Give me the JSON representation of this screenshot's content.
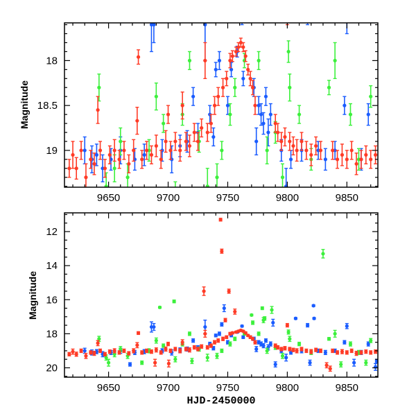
{
  "chart_data": {
    "type": "scatter",
    "title": "",
    "xlabel": "HJD-2450000",
    "ylabel": "Magnitude",
    "xlim": [
      9613,
      9876
    ],
    "x_ticks": [
      9650,
      9700,
      9750,
      9800,
      9850
    ],
    "x_minor_step": 10,
    "colors": {
      "blue": "#1a5cff",
      "green": "#3cf03c",
      "red": "#ff3b26"
    },
    "panels": [
      {
        "name": "top",
        "ylim": [
          17.58,
          19.41
        ],
        "inverted": true,
        "y_ticks": [
          18,
          18.5,
          19
        ],
        "y_tick_labels": [
          "18",
          "18.5",
          "19"
        ],
        "y_minor_step": 0.1,
        "show_xlabel": false
      },
      {
        "name": "bottom",
        "ylim": [
          10.9,
          20.55
        ],
        "inverted": true,
        "y_ticks": [
          12,
          14,
          16,
          18,
          20
        ],
        "y_tick_labels": [
          "12",
          "14",
          "16",
          "18",
          "20"
        ],
        "y_minor_step": 0.5,
        "show_xlabel": true
      }
    ],
    "series": [
      {
        "name": "blue",
        "color": "#1a5cff",
        "points": [
          [
            9630,
            19.0,
            0.15
          ],
          [
            9636,
            19.1,
            0.15
          ],
          [
            9640,
            19.05,
            0.12
          ],
          [
            9645,
            19.2,
            0.15
          ],
          [
            9652,
            19.1,
            0.12
          ],
          [
            9660,
            19.0,
            0.15
          ],
          [
            9668,
            19.8,
            0.1
          ],
          [
            9672,
            19.1,
            0.12
          ],
          [
            9680,
            19.05,
            0.12
          ],
          [
            9686,
            17.6,
            0.3
          ],
          [
            9688,
            17.6,
            0.2
          ],
          [
            9695,
            19.0,
            0.12
          ],
          [
            9703,
            19.1,
            0.15
          ],
          [
            9710,
            18.95,
            0.12
          ],
          [
            9716,
            18.9,
            0.12
          ],
          [
            9721,
            18.4,
            0.1
          ],
          [
            9725,
            18.8,
            0.1
          ],
          [
            9731,
            17.6,
            0.4
          ],
          [
            9735,
            18.6,
            0.1
          ],
          [
            9738,
            18.85,
            0.1
          ],
          [
            9740,
            18.1,
            0.08
          ],
          [
            9743,
            18.0,
            0.1
          ],
          [
            9745,
            17.45,
            0.1
          ],
          [
            9747,
            16.5,
            0.2
          ],
          [
            9750,
            18.5,
            0.1
          ],
          [
            9753,
            18.1,
            0.08
          ],
          [
            9758,
            17.9,
            0.06
          ],
          [
            9762,
            17.55,
            0.05
          ],
          [
            9763,
            18.2,
            0.08
          ],
          [
            9772,
            18.3,
            0.1
          ],
          [
            9774,
            18.9,
            0.15
          ],
          [
            9776,
            18.5,
            0.1
          ],
          [
            9778,
            18.6,
            0.12
          ],
          [
            9780,
            18.7,
            0.12
          ],
          [
            9782,
            18.4,
            0.1
          ],
          [
            9784,
            18.8,
            0.15
          ],
          [
            9786,
            18.6,
            0.12
          ],
          [
            9788,
            17.35,
            0.2
          ],
          [
            9790,
            19.8,
            0.15
          ],
          [
            9795,
            19.0,
            0.12
          ],
          [
            9799,
            19.4,
            0.2
          ],
          [
            9803,
            19.1,
            0.1
          ],
          [
            9807,
            17.1,
            0.05
          ],
          [
            9812,
            19.0,
            0.12
          ],
          [
            9817,
            17.5,
            0.1
          ],
          [
            9819,
            19.7,
            0.15
          ],
          [
            9822,
            16.35,
            0.05
          ],
          [
            9822.5,
            17.1,
            0.05
          ],
          [
            9826,
            19.0,
            0.1
          ],
          [
            9832,
            19.1,
            0.12
          ],
          [
            9840,
            19.0,
            0.1
          ],
          [
            9848,
            18.5,
            0.1
          ],
          [
            9850,
            17.55,
            0.15
          ],
          [
            9856,
            19.7,
            0.2
          ],
          [
            9862,
            19.1,
            0.12
          ],
          [
            9868,
            18.6,
            0.12
          ],
          [
            9874,
            19.95,
            0.2
          ],
          [
            9875,
            19.6,
            0.1
          ]
        ]
      },
      {
        "name": "green",
        "color": "#3cf03c",
        "points": [
          [
            9642,
            18.3,
            0.15
          ],
          [
            9648,
            19.4,
            0.15
          ],
          [
            9650,
            19.7,
            0.2
          ],
          [
            9655,
            19.2,
            0.15
          ],
          [
            9660,
            18.9,
            0.15
          ],
          [
            9666,
            19.3,
            0.15
          ],
          [
            9678,
            19.7,
            0.1
          ],
          [
            9684,
            19.0,
            0.12
          ],
          [
            9690,
            18.4,
            0.15
          ],
          [
            9693,
            16.45,
            0.05
          ],
          [
            9696,
            18.7,
            0.1
          ],
          [
            9705,
            16.1,
            0.08
          ],
          [
            9706,
            19.5,
            0.15
          ],
          [
            9712,
            18.6,
            0.12
          ],
          [
            9718,
            18.0,
            0.1
          ],
          [
            9720,
            19.6,
            0.15
          ],
          [
            9726,
            18.9,
            0.12
          ],
          [
            9733,
            19.4,
            0.2
          ],
          [
            9741,
            19.3,
            0.15
          ],
          [
            9745,
            19.0,
            0.1
          ],
          [
            9752,
            18.6,
            0.12
          ],
          [
            9756,
            18.3,
            0.1
          ],
          [
            9764,
            18.0,
            0.08
          ],
          [
            9770,
            16.9,
            0.05
          ],
          [
            9771,
            17.35,
            0.1
          ],
          [
            9776,
            18.0,
            0.1
          ],
          [
            9779,
            16.5,
            0.08
          ],
          [
            9780,
            17.2,
            0.15
          ],
          [
            9781,
            17.1,
            0.1
          ],
          [
            9783,
            19.0,
            0.15
          ],
          [
            9787,
            16.6,
            0.2
          ],
          [
            9790,
            18.8,
            0.12
          ],
          [
            9796,
            19.3,
            0.15
          ],
          [
            9801,
            17.9,
            0.12
          ],
          [
            9802,
            18.3,
            0.15
          ],
          [
            9810,
            18.6,
            0.1
          ],
          [
            9820,
            19.1,
            0.12
          ],
          [
            9830,
            13.3,
            0.25
          ],
          [
            9835,
            18.3,
            0.08
          ],
          [
            9840,
            18.0,
            0.2
          ],
          [
            9845,
            19.8,
            0.15
          ],
          [
            9853,
            18.6,
            0.12
          ],
          [
            9860,
            19.1,
            0.12
          ],
          [
            9866,
            19.7,
            0.15
          ],
          [
            9870,
            18.4,
            0.12
          ]
        ]
      },
      {
        "name": "red",
        "color": "#ff3b26",
        "points": [
          [
            9617,
            19.2,
            0.1
          ],
          [
            9620,
            19.05,
            0.15
          ],
          [
            9623,
            19.2,
            0.12
          ],
          [
            9627,
            19.0,
            0.1
          ],
          [
            9631,
            19.3,
            0.15
          ],
          [
            9635,
            19.1,
            0.1
          ],
          [
            9638,
            19.15,
            0.12
          ],
          [
            9641,
            18.55,
            0.15
          ],
          [
            9643,
            19.0,
            0.1
          ],
          [
            9647,
            19.2,
            0.1
          ],
          [
            9651,
            19.05,
            0.1
          ],
          [
            9655,
            19.0,
            0.12
          ],
          [
            9659,
            19.1,
            0.1
          ],
          [
            9663,
            19.0,
            0.1
          ],
          [
            9667,
            19.15,
            0.1
          ],
          [
            9671,
            19.0,
            0.12
          ],
          [
            9674,
            18.67,
            0.15
          ],
          [
            9675,
            17.96,
            0.08
          ],
          [
            9678,
            19.1,
            0.1
          ],
          [
            9682,
            19.0,
            0.1
          ],
          [
            9686,
            19.05,
            0.1
          ],
          [
            9689,
            19.7,
            0.2
          ],
          [
            9690,
            18.95,
            0.12
          ],
          [
            9694,
            19.1,
            0.1
          ],
          [
            9698,
            18.9,
            0.12
          ],
          [
            9700,
            18.6,
            0.1
          ],
          [
            9700.5,
            19.75,
            0.2
          ],
          [
            9702,
            19.0,
            0.1
          ],
          [
            9706,
            18.9,
            0.1
          ],
          [
            9710,
            19.0,
            0.12
          ],
          [
            9712,
            18.5,
            0.15
          ],
          [
            9715,
            18.9,
            0.1
          ],
          [
            9718,
            18.95,
            0.12
          ],
          [
            9722,
            18.8,
            0.1
          ],
          [
            9725,
            18.9,
            0.1
          ],
          [
            9728,
            18.75,
            0.1
          ],
          [
            9730,
            15.5,
            0.25
          ],
          [
            9731,
            18.0,
            0.2
          ],
          [
            9733,
            18.8,
            0.1
          ],
          [
            9736,
            18.7,
            0.1
          ],
          [
            9739,
            18.5,
            0.1
          ],
          [
            9742,
            18.4,
            0.1
          ],
          [
            9744,
            11.3,
            0.08
          ],
          [
            9745,
            13.15,
            0.12
          ],
          [
            9746,
            18.3,
            0.1
          ],
          [
            9748,
            17.2,
            0.1
          ],
          [
            9749,
            18.2,
            0.08
          ],
          [
            9751,
            15.5,
            0.12
          ],
          [
            9752,
            18.0,
            0.08
          ],
          [
            9754,
            17.95,
            0.06
          ],
          [
            9756,
            16.7,
            0.15
          ],
          [
            9757,
            17.9,
            0.05
          ],
          [
            9759,
            17.85,
            0.05
          ],
          [
            9761,
            17.8,
            0.05
          ],
          [
            9763,
            17.85,
            0.05
          ],
          [
            9765,
            17.95,
            0.06
          ],
          [
            9767,
            18.1,
            0.06
          ],
          [
            9769,
            18.2,
            0.08
          ],
          [
            9771,
            18.3,
            0.08
          ],
          [
            9773,
            18.5,
            0.1
          ],
          [
            9790,
            18.7,
            0.1
          ],
          [
            9792,
            18.8,
            0.1
          ],
          [
            9795,
            18.9,
            0.1
          ],
          [
            9798,
            18.85,
            0.1
          ],
          [
            9800,
            17.5,
            0.1
          ],
          [
            9802,
            18.9,
            0.1
          ],
          [
            9805,
            18.95,
            0.1
          ],
          [
            9808,
            19.0,
            0.12
          ],
          [
            9812,
            18.9,
            0.1
          ],
          [
            9816,
            19.0,
            0.1
          ],
          [
            9820,
            19.05,
            0.12
          ],
          [
            9824,
            18.95,
            0.1
          ],
          [
            9828,
            19.0,
            0.1
          ],
          [
            9833,
            19.85,
            0.15
          ],
          [
            9836,
            20.05,
            0.15
          ],
          [
            9838,
            19.0,
            0.1
          ],
          [
            9842,
            19.1,
            0.1
          ],
          [
            9846,
            19.05,
            0.12
          ],
          [
            9850,
            19.1,
            0.1
          ],
          [
            9854,
            19.0,
            0.1
          ],
          [
            9858,
            19.15,
            0.12
          ],
          [
            9862,
            19.1,
            0.1
          ],
          [
            9866,
            19.05,
            0.1
          ],
          [
            9870,
            19.1,
            0.1
          ],
          [
            9874,
            19.05,
            0.1
          ]
        ]
      }
    ]
  }
}
